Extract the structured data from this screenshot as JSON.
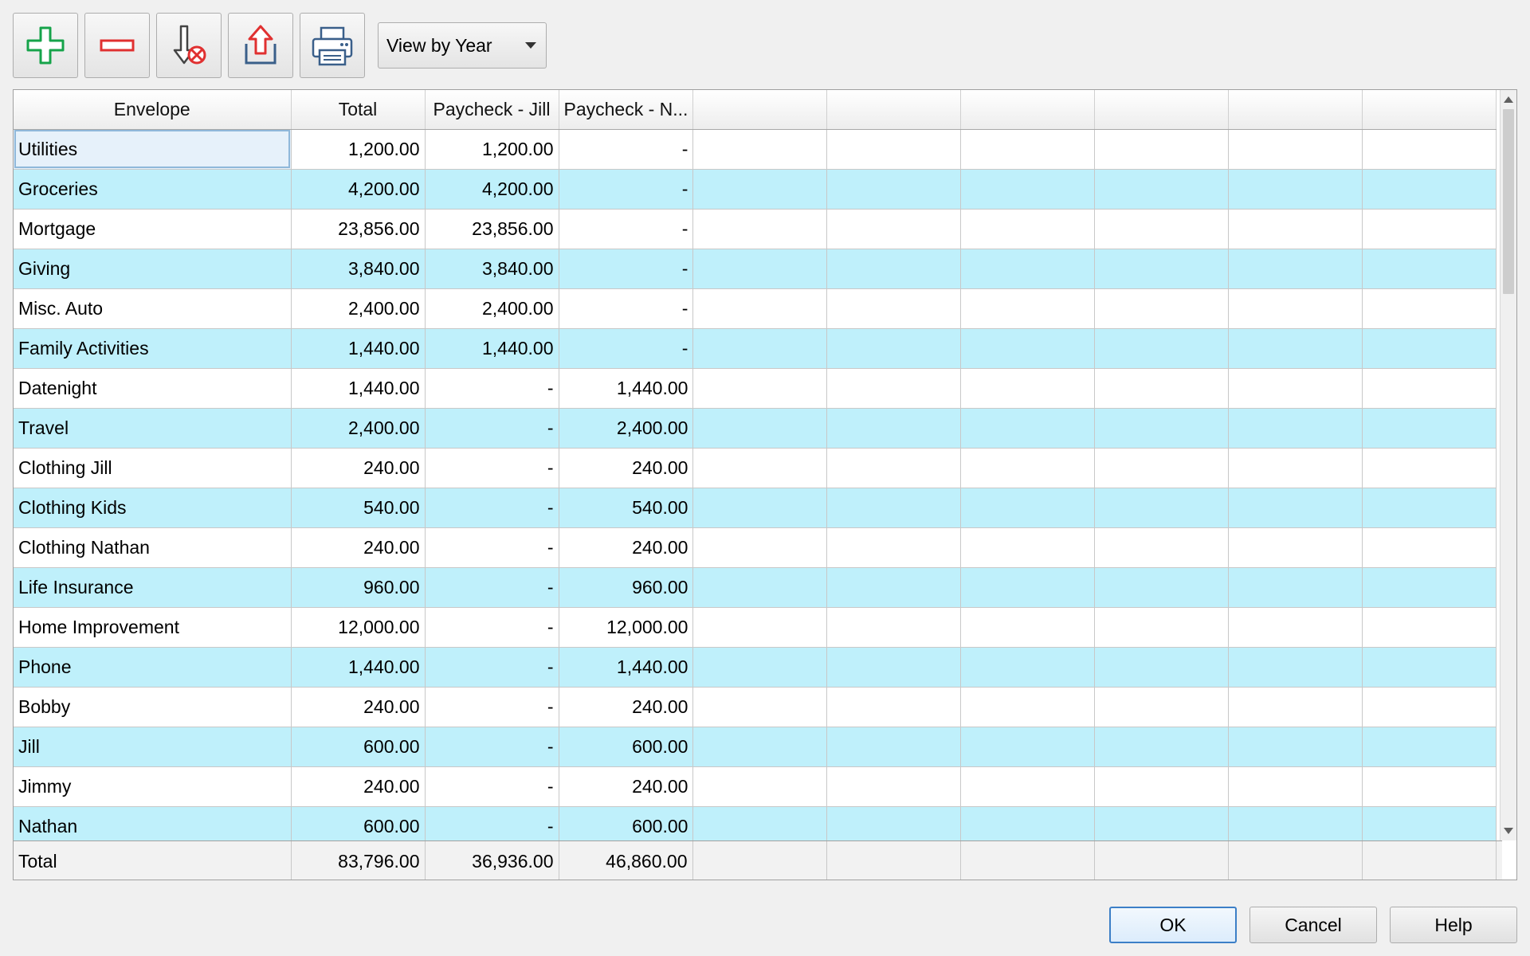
{
  "toolbar": {
    "add_icon": "plus-icon",
    "remove_icon": "minus-icon",
    "import_icon": "import-blocked-icon",
    "export_icon": "export-icon",
    "print_icon": "printer-icon",
    "view_select": {
      "selected": "View by Year"
    },
    "colors": {
      "add": "#16a34a",
      "remove": "#e03030",
      "export": "#e03030",
      "print": "#3a5f8a"
    }
  },
  "grid": {
    "headers": [
      "Envelope",
      "Total",
      "Paycheck - Jill",
      "Paycheck - N...",
      "",
      "",
      "",
      "",
      "",
      ""
    ],
    "rows": [
      {
        "envelope": "Utilities",
        "total": "1,200.00",
        "jill": "1,200.00",
        "nathan": "-"
      },
      {
        "envelope": "Groceries",
        "total": "4,200.00",
        "jill": "4,200.00",
        "nathan": "-"
      },
      {
        "envelope": "Mortgage",
        "total": "23,856.00",
        "jill": "23,856.00",
        "nathan": "-"
      },
      {
        "envelope": "Giving",
        "total": "3,840.00",
        "jill": "3,840.00",
        "nathan": "-"
      },
      {
        "envelope": "Misc. Auto",
        "total": "2,400.00",
        "jill": "2,400.00",
        "nathan": "-"
      },
      {
        "envelope": "Family Activities",
        "total": "1,440.00",
        "jill": "1,440.00",
        "nathan": "-"
      },
      {
        "envelope": "Datenight",
        "total": "1,440.00",
        "jill": "-",
        "nathan": "1,440.00"
      },
      {
        "envelope": "Travel",
        "total": "2,400.00",
        "jill": "-",
        "nathan": "2,400.00"
      },
      {
        "envelope": "Clothing Jill",
        "total": "240.00",
        "jill": "-",
        "nathan": "240.00"
      },
      {
        "envelope": "Clothing Kids",
        "total": "540.00",
        "jill": "-",
        "nathan": "540.00"
      },
      {
        "envelope": "Clothing Nathan",
        "total": "240.00",
        "jill": "-",
        "nathan": "240.00"
      },
      {
        "envelope": "Life Insurance",
        "total": "960.00",
        "jill": "-",
        "nathan": "960.00"
      },
      {
        "envelope": "Home Improvement",
        "total": "12,000.00",
        "jill": "-",
        "nathan": "12,000.00"
      },
      {
        "envelope": "Phone",
        "total": "1,440.00",
        "jill": "-",
        "nathan": "1,440.00"
      },
      {
        "envelope": "Bobby",
        "total": "240.00",
        "jill": "-",
        "nathan": "240.00"
      },
      {
        "envelope": "Jill",
        "total": "600.00",
        "jill": "-",
        "nathan": "600.00"
      },
      {
        "envelope": "Jimmy",
        "total": "240.00",
        "jill": "-",
        "nathan": "240.00"
      },
      {
        "envelope": "Nathan",
        "total": "600.00",
        "jill": "-",
        "nathan": "600.00"
      }
    ],
    "footer": {
      "label": "Total",
      "total": "83,796.00",
      "jill": "36,936.00",
      "nathan": "46,860.00"
    },
    "colors": {
      "alt_row": "#bff0fb",
      "selection": "#e6f1fa"
    }
  },
  "buttons": {
    "ok": "OK",
    "cancel": "Cancel",
    "help": "Help"
  }
}
